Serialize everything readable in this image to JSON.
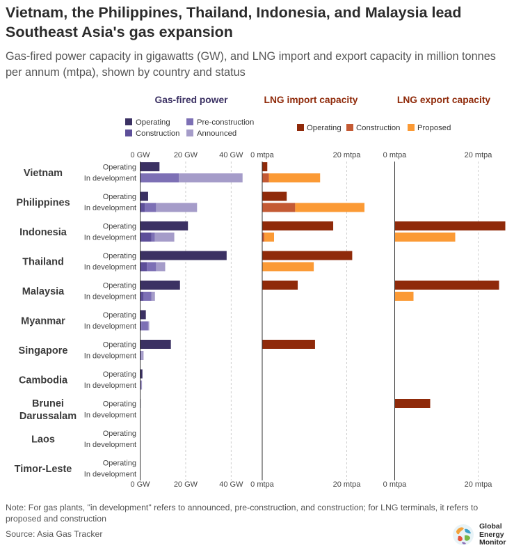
{
  "title": "Vietnam, the Philippines, Thailand, Indonesia, and Malaysia lead Southeast Asia's gas expansion",
  "subtitle": "Gas-fired power capacity in gigawatts (GW), and LNG import and export capacity in million tonnes per annum (mtpa), shown by country and status",
  "note": "Note: For gas plants, \"in development\" refers to announced, pre-construction, and construction; for LNG terminals, it refers to proposed and construction",
  "source": "Source: Asia Gas Tracker",
  "brand": {
    "line1": "Global",
    "line2": "Energy",
    "line3": "Monitor",
    "icon": "globe-icon"
  },
  "colors": {
    "gas_operating": "#3b3163",
    "gas_construction": "#5d4f99",
    "gas_preconstruction": "#7d70b5",
    "gas_announced": "#a59cc9",
    "gas_title": "#3b3163",
    "lng_operating": "#8f2a0a",
    "lng_construction": "#c45a34",
    "lng_proposed": "#fb9a35",
    "lng_title": "#8f2a0a"
  },
  "chart_data": {
    "type": "bar",
    "orientation": "horizontal",
    "stacked": true,
    "categories": [
      "Vietnam",
      "Philippines",
      "Indonesia",
      "Thailand",
      "Malaysia",
      "Myanmar",
      "Singapore",
      "Cambodia",
      "Brunei Darussalam",
      "Laos",
      "Timor-Leste"
    ],
    "row_labels": [
      "Operating",
      "In development"
    ],
    "panels": [
      {
        "key": "gas",
        "title": "Gas-fired power",
        "unit": "GW",
        "xlim": [
          0,
          45
        ],
        "ticks": [
          0,
          20,
          40
        ],
        "tick_labels": [
          "0 GW",
          "20 GW",
          "40 GW"
        ],
        "legend": [
          "Operating",
          "Pre-construction",
          "Construction",
          "Announced"
        ],
        "operating": [
          8.5,
          3.5,
          21,
          38,
          17.5,
          2.5,
          13.5,
          1,
          0.2,
          0.1,
          0
        ],
        "development_series": [
          {
            "name": "Construction",
            "values": [
              0,
              2,
              5,
              3,
              1.5,
              0.5,
              0,
              0,
              0,
              0,
              0
            ]
          },
          {
            "name": "Pre-construction",
            "values": [
              17,
              5,
              1.5,
              4,
              3.5,
              3,
              0.5,
              0.3,
              0,
              0,
              0
            ]
          },
          {
            "name": "Announced",
            "values": [
              28,
              18,
              8.5,
              4,
              1.5,
              0.5,
              1,
              0.5,
              0.1,
              0.1,
              0.1
            ]
          }
        ]
      },
      {
        "key": "lng_import",
        "title": "LNG import capacity",
        "unit": "mtpa",
        "xlim": [
          0,
          24
        ],
        "ticks": [
          0,
          20
        ],
        "tick_labels": [
          "0 mtpa",
          "20 mtpa"
        ],
        "legend": [
          "Operating",
          "Construction",
          "Proposed"
        ],
        "operating": [
          1.2,
          5.8,
          16.8,
          21.3,
          8.4,
          0,
          12.5,
          0,
          0,
          0,
          0
        ],
        "development_series": [
          {
            "name": "Construction",
            "values": [
              1.6,
              7.8,
              0.5,
              0,
              0,
              0,
              0,
              0,
              0,
              0,
              0
            ]
          },
          {
            "name": "Proposed",
            "values": [
              12.1,
              16.4,
              2.3,
              12.2,
              0,
              0,
              0,
              0,
              0,
              0,
              0
            ]
          }
        ]
      },
      {
        "key": "lng_export",
        "title": "LNG export capacity",
        "unit": "mtpa",
        "xlim": [
          0,
          27
        ],
        "ticks": [
          0,
          20
        ],
        "tick_labels": [
          "0 mtpa",
          "20 mtpa"
        ],
        "legend": [],
        "operating": [
          0,
          0,
          26.5,
          0,
          25,
          0,
          0,
          0,
          8.5,
          0,
          0
        ],
        "development_series": [
          {
            "name": "Construction",
            "values": [
              0,
              0,
              0,
              0,
              0,
              0,
              0,
              0,
              0,
              0,
              0
            ]
          },
          {
            "name": "Proposed",
            "values": [
              0,
              0,
              14.5,
              0,
              4.5,
              0,
              0,
              0,
              0,
              0,
              0
            ]
          }
        ]
      }
    ]
  }
}
